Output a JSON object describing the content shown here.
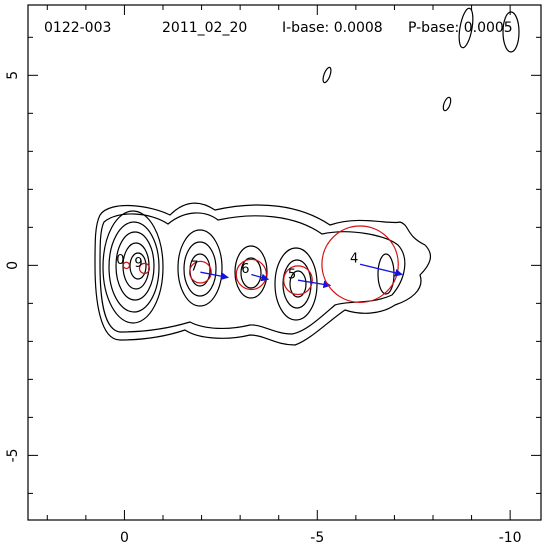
{
  "chart_data": {
    "type": "contour",
    "header": [
      "0122-003",
      "2011_02_20",
      "I-base: 0.0008",
      "P-base: 0.0005"
    ],
    "xlim": [
      2.5,
      -10.8
    ],
    "ylim": [
      -6.7,
      6.85
    ],
    "xticks": [
      0,
      -5,
      -10
    ],
    "yticks": [
      -5,
      0,
      5
    ],
    "xminorticks": [
      2,
      1,
      -1,
      -2,
      -3,
      -4,
      -6,
      -7,
      -8,
      -9
    ],
    "yminorticks": [
      6,
      4,
      3,
      2,
      1,
      -1,
      -2,
      -3,
      -4,
      -6
    ],
    "components": [
      {
        "label": "0",
        "x": -0.05,
        "y": 0.0,
        "radius": 0.08
      },
      {
        "label": "9",
        "x": -0.52,
        "y": -0.08,
        "radius": 0.13
      },
      {
        "label": "7",
        "x": -1.97,
        "y": -0.18,
        "radius": 0.28,
        "arrow_to": [
          -2.69,
          -0.32
        ]
      },
      {
        "label": "6",
        "x": -3.29,
        "y": -0.24,
        "radius": 0.39,
        "arrow_to": [
          -3.73,
          -0.37
        ]
      },
      {
        "label": "5",
        "x": -4.5,
        "y": -0.39,
        "radius": 0.37,
        "arrow_to": [
          -5.34,
          -0.53
        ]
      },
      {
        "label": "4",
        "x": -6.11,
        "y": 0.03,
        "radius": 0.99,
        "arrow_to": [
          -7.2,
          -0.24
        ]
      }
    ],
    "circle_color": "#d01010",
    "arrow_color": "#1414e0",
    "label_color": "#2a2ab8"
  }
}
